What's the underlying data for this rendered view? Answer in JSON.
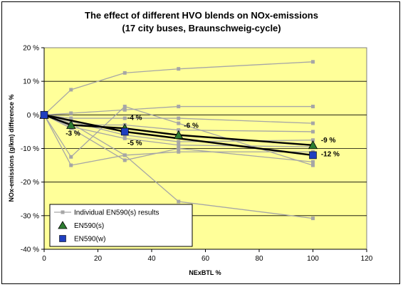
{
  "chart_data": {
    "type": "line",
    "title": "The effect of different HVO blends on NOx-emissions",
    "subtitle": "(17 city buses, Braunschweig-cycle)",
    "xlabel": "NExBTL %",
    "ylabel": "NOx-emissions (g/km) difference %",
    "xlim": [
      0,
      120
    ],
    "ylim": [
      -40,
      20
    ],
    "xticks": [
      0,
      20,
      40,
      60,
      80,
      100,
      120
    ],
    "yticks": [
      -40,
      -30,
      -20,
      -10,
      0,
      10,
      20
    ],
    "ytick_labels": [
      "-40 %",
      "-30 %",
      "-20 %",
      "-10 %",
      "0 %",
      "10 %",
      "20 %"
    ],
    "grid": "horizontal",
    "plot_bg": "#ffff99",
    "legend_position": "bottom-left",
    "individual_series_label": "Individual EN590(s) results",
    "individual_series": [
      [
        [
          0,
          0
        ],
        [
          10,
          7.5
        ],
        [
          30,
          12.5
        ],
        [
          50,
          13.7
        ],
        [
          100,
          15.8
        ]
      ],
      [
        [
          0,
          0
        ],
        [
          10,
          -12.5
        ],
        [
          30,
          2.5
        ],
        [
          50,
          -2.5
        ],
        [
          100,
          -15
        ]
      ],
      [
        [
          0,
          0
        ],
        [
          10,
          -15
        ],
        [
          30,
          -12
        ],
        [
          50,
          -11
        ],
        [
          100,
          -11
        ]
      ],
      [
        [
          0,
          0
        ],
        [
          10,
          -2.5
        ],
        [
          30,
          -12
        ],
        [
          50,
          -25.8
        ],
        [
          100,
          -30.8
        ]
      ],
      [
        [
          0,
          0
        ],
        [
          10,
          0.5
        ],
        [
          30,
          1.5
        ],
        [
          50,
          2.5
        ],
        [
          100,
          2.5
        ]
      ],
      [
        [
          0,
          0
        ],
        [
          10,
          -1
        ],
        [
          30,
          -1
        ],
        [
          50,
          -1
        ],
        [
          100,
          -2.5
        ]
      ],
      [
        [
          0,
          0
        ],
        [
          10,
          -3
        ],
        [
          30,
          -3
        ],
        [
          50,
          -4.5
        ],
        [
          100,
          -5
        ]
      ],
      [
        [
          0,
          0
        ],
        [
          10,
          -2
        ],
        [
          30,
          -6
        ],
        [
          50,
          -8
        ],
        [
          100,
          -7.5
        ]
      ],
      [
        [
          0,
          0
        ],
        [
          10,
          -3.5
        ],
        [
          30,
          -7
        ],
        [
          50,
          -9
        ],
        [
          100,
          -9.5
        ]
      ],
      [
        [
          0,
          0
        ],
        [
          10,
          -4
        ],
        [
          30,
          -13.5
        ],
        [
          50,
          -10
        ],
        [
          100,
          -14
        ]
      ]
    ],
    "series": [
      {
        "name": "EN590(s)",
        "marker": "triangle",
        "color": "#2e7d32",
        "x": [
          0,
          10,
          30,
          50,
          100
        ],
        "y": [
          0,
          -3,
          -4,
          -6,
          -9
        ]
      },
      {
        "name": "EN590(w)",
        "marker": "square",
        "color": "#1f3fbf",
        "x": [
          0,
          30,
          100
        ],
        "y": [
          0,
          -5,
          -12
        ]
      }
    ],
    "annotations": [
      {
        "text": "-3 %",
        "x": 8,
        "y": -6.2
      },
      {
        "text": "-4 %",
        "x": 31,
        "y": -1.5
      },
      {
        "text": "-5 %",
        "x": 31,
        "y": -9
      },
      {
        "text": "-6 %",
        "x": 52,
        "y": -3.8
      },
      {
        "text": "-9 %",
        "x": 103,
        "y": -8.2
      },
      {
        "text": "-12 %",
        "x": 103,
        "y": -12.3
      }
    ]
  }
}
